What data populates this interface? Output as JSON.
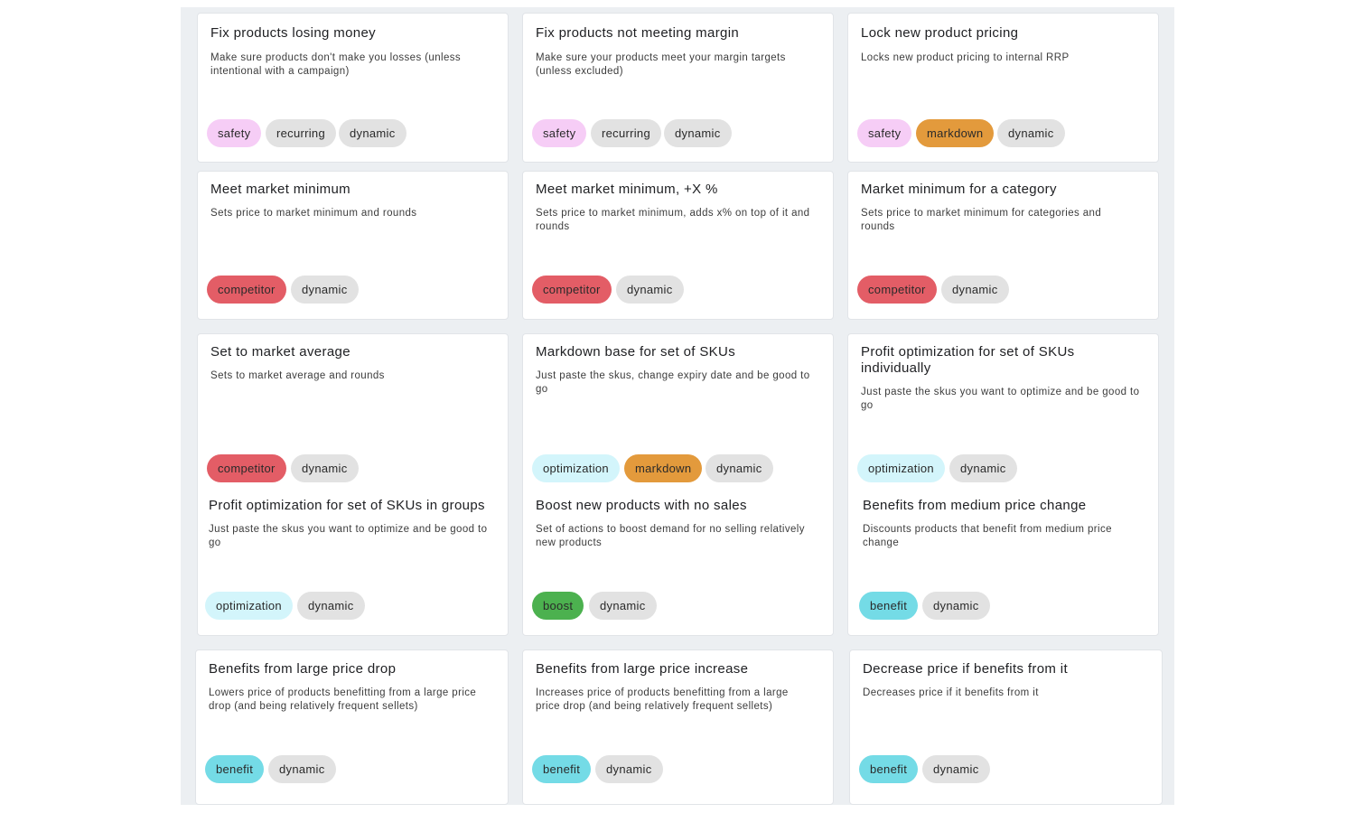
{
  "cards": [
    {
      "title": "Fix products losing money",
      "description": "Make sure products don't make you losses (unless intentional with a campaign)",
      "tags": [
        {
          "label": "safety",
          "type": "safety"
        },
        {
          "label": "recurring",
          "type": "recurring"
        },
        {
          "label": "dynamic",
          "type": "dynamic"
        }
      ]
    },
    {
      "title": "Fix products not meeting margin",
      "description": "Make sure your products meet your margin targets (unless excluded)",
      "tags": [
        {
          "label": "safety",
          "type": "safety"
        },
        {
          "label": "recurring",
          "type": "recurring"
        },
        {
          "label": "dynamic",
          "type": "dynamic"
        }
      ]
    },
    {
      "title": "Lock new product pricing",
      "description": "Locks new product pricing to internal RRP",
      "tags": [
        {
          "label": "safety",
          "type": "safety"
        },
        {
          "label": "markdown",
          "type": "markdown"
        },
        {
          "label": "dynamic",
          "type": "dynamic"
        }
      ]
    },
    {
      "title": "Meet market minimum",
      "description": "Sets price to market minimum and rounds",
      "tags": [
        {
          "label": "competitor",
          "type": "competitor"
        },
        {
          "label": "dynamic",
          "type": "dynamic"
        }
      ]
    },
    {
      "title": "Meet market minimum, +X %",
      "description": "Sets price to market minimum, adds x% on top of it and rounds",
      "tags": [
        {
          "label": "competitor",
          "type": "competitor"
        },
        {
          "label": "dynamic",
          "type": "dynamic"
        }
      ]
    },
    {
      "title": "Market minimum for a category",
      "description": "Sets price to market minimum for categories and rounds",
      "tags": [
        {
          "label": "competitor",
          "type": "competitor"
        },
        {
          "label": "dynamic",
          "type": "dynamic"
        }
      ]
    },
    {
      "title": "Set to market average",
      "description": "Sets to market average and rounds",
      "tags": [
        {
          "label": "competitor",
          "type": "competitor"
        },
        {
          "label": "dynamic",
          "type": "dynamic"
        }
      ]
    },
    {
      "title": "Markdown base for set of SKUs",
      "description": "Just paste the skus, change expiry date and be good to go",
      "tags": [
        {
          "label": "optimization",
          "type": "optimization"
        },
        {
          "label": "markdown",
          "type": "markdown"
        },
        {
          "label": "dynamic",
          "type": "dynamic"
        }
      ]
    },
    {
      "title": "Profit optimization for set of SKUs individually",
      "description": "Just paste the skus you want to optimize and be good to go",
      "tags": [
        {
          "label": "optimization",
          "type": "optimization"
        },
        {
          "label": "dynamic",
          "type": "dynamic"
        }
      ]
    },
    {
      "title": "Profit optimization for set of SKUs in groups",
      "description": "Just paste the skus you want to optimize and be good to go",
      "tags": [
        {
          "label": "optimization",
          "type": "optimization"
        },
        {
          "label": "dynamic",
          "type": "dynamic"
        }
      ]
    },
    {
      "title": "Boost new products with no sales",
      "description": "Set of actions to boost demand for no selling relatively new products",
      "tags": [
        {
          "label": "boost",
          "type": "boost"
        },
        {
          "label": "dynamic",
          "type": "dynamic"
        }
      ]
    },
    {
      "title": "Benefits from medium price change",
      "description": "Discounts products that benefit from medium price change",
      "tags": [
        {
          "label": "benefit",
          "type": "benefit"
        },
        {
          "label": "dynamic",
          "type": "dynamic"
        }
      ]
    },
    {
      "title": "Benefits from large price drop",
      "description": "Lowers price of products benefitting from a large price drop (and being relatively frequent sellets)",
      "tags": [
        {
          "label": "benefit",
          "type": "benefit"
        },
        {
          "label": "dynamic",
          "type": "dynamic"
        }
      ]
    },
    {
      "title": "Benefits from large price increase",
      "description": "Increases price of products benefitting from a large price drop (and being relatively frequent sellets)",
      "tags": [
        {
          "label": "benefit",
          "type": "benefit"
        },
        {
          "label": "dynamic",
          "type": "dynamic"
        }
      ]
    },
    {
      "title": "Decrease price if benefits from it",
      "description": "Decreases price if it benefits from it",
      "tags": [
        {
          "label": "benefit",
          "type": "benefit"
        },
        {
          "label": "dynamic",
          "type": "dynamic"
        }
      ]
    }
  ],
  "colors": {
    "safety": "#f6cdf6",
    "recurring": "#e2e2e2",
    "dynamic": "#e2e2e2",
    "markdown": "#e39a3c",
    "competitor": "#e35d66",
    "optimization": "#d3f5fb",
    "boost": "#4cb14f",
    "benefit": "#74dbe6"
  }
}
